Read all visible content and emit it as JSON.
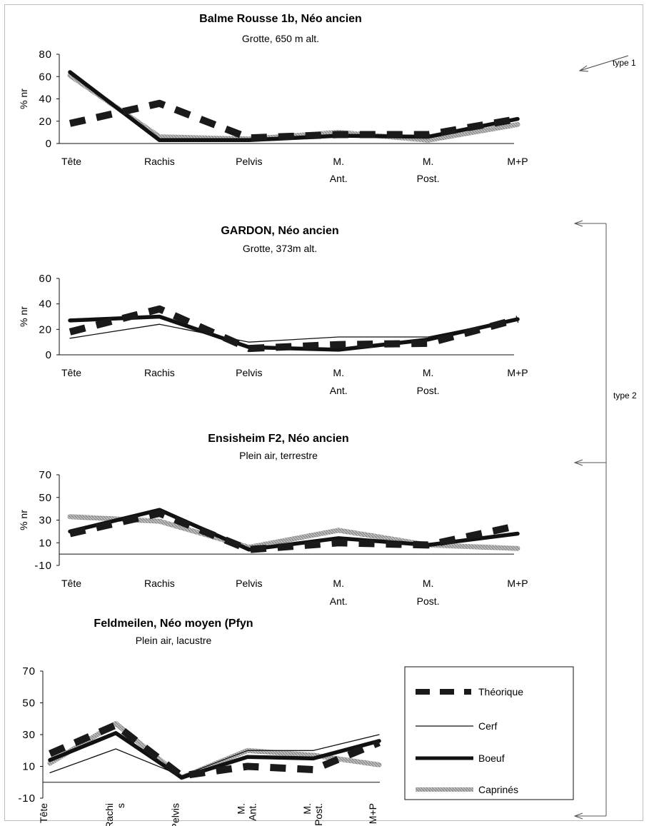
{
  "figure": {
    "annotations": {
      "type1": "type 1",
      "type2": "type 2"
    },
    "legend": [
      {
        "key": "theorique",
        "label": "Théorique"
      },
      {
        "key": "cerf",
        "label": "Cerf"
      },
      {
        "key": "boeuf",
        "label": "Boeuf"
      },
      {
        "key": "caprines",
        "label": "Caprinés"
      }
    ],
    "styles": {
      "theorique": {
        "color": "#1a1a1a",
        "style": "dashed-thick"
      },
      "cerf": {
        "color": "#111111",
        "style": "thin"
      },
      "boeuf": {
        "color": "#111111",
        "style": "thick"
      },
      "caprines": {
        "color": "#9a9a9a",
        "style": "thick-textured"
      }
    }
  },
  "chart_data": [
    {
      "type": "line",
      "title": "Balme Rousse 1b, Néo ancien",
      "subtitle": "Grotte, 650 m alt.",
      "ylabel": "% nr",
      "ylim": [
        0,
        80
      ],
      "yticks": [
        "0",
        "20",
        "40",
        "60",
        "80"
      ],
      "categories": [
        "Tête",
        "Rachis",
        "Pelvis",
        "M.\nAnt.",
        "M.\nPost.",
        "M+P"
      ],
      "series": [
        {
          "name": "Théorique",
          "key": "theorique",
          "values": [
            18,
            36,
            5,
            8,
            8,
            22
          ]
        },
        {
          "name": "Cerf",
          "key": "cerf",
          "values": [
            null,
            null,
            null,
            null,
            null,
            null
          ]
        },
        {
          "name": "Boeuf",
          "key": "boeuf",
          "values": [
            64,
            3,
            3,
            7,
            6,
            22
          ]
        },
        {
          "name": "Caprinés",
          "key": "caprines",
          "values": [
            61,
            6,
            4,
            10,
            3,
            17
          ]
        }
      ]
    },
    {
      "type": "line",
      "title": "GARDON, Néo ancien",
      "subtitle": "Grotte, 373m alt.",
      "ylabel": "% nr",
      "ylim": [
        0,
        60
      ],
      "yticks": [
        "0",
        "20",
        "40",
        "60"
      ],
      "categories": [
        "Tête",
        "Rachis",
        "Pelvis",
        "M.\nAnt.",
        "M.\nPost.",
        "M+P"
      ],
      "series": [
        {
          "name": "Théorique",
          "key": "theorique",
          "values": [
            18,
            36,
            5,
            8,
            9,
            28
          ]
        },
        {
          "name": "Cerf",
          "key": "cerf",
          "values": [
            13,
            24,
            10,
            14,
            14,
            28
          ]
        },
        {
          "name": "Boeuf",
          "key": "boeuf",
          "values": [
            27,
            30,
            6,
            4,
            12,
            28
          ]
        },
        {
          "name": "Caprinés",
          "key": "caprines",
          "values": [
            null,
            null,
            null,
            null,
            null,
            null
          ]
        }
      ]
    },
    {
      "type": "line",
      "title": "Ensisheim F2, Néo ancien",
      "subtitle": "Plein air, terrestre",
      "ylabel": "% nr",
      "ylim": [
        -10,
        70
      ],
      "yticks": [
        "-10",
        "10",
        "30",
        "50",
        "70"
      ],
      "categories": [
        "Tête",
        "Rachis",
        "Pelvis",
        "M.\nAnt.",
        "M.\nPost.",
        "M+P"
      ],
      "series": [
        {
          "name": "Théorique",
          "key": "theorique",
          "values": [
            18,
            36,
            4,
            10,
            8,
            25
          ]
        },
        {
          "name": "Cerf",
          "key": "cerf",
          "values": [
            null,
            null,
            null,
            null,
            null,
            null
          ]
        },
        {
          "name": "Boeuf",
          "key": "boeuf",
          "values": [
            20,
            39,
            4,
            14,
            8,
            18
          ]
        },
        {
          "name": "Caprinés",
          "key": "caprines",
          "values": [
            33,
            29,
            6,
            21,
            8,
            5
          ]
        }
      ]
    },
    {
      "type": "line",
      "title": "Feldmeilen, Néo moyen (Pfyn",
      "subtitle": "Plein air, lacustre",
      "ylim": [
        -10,
        70
      ],
      "yticks": [
        "-10",
        "10",
        "30",
        "50",
        "70"
      ],
      "categories": [
        "Tête",
        "Rachi\ns",
        "Pelvis",
        "M.\nAnt.",
        "M.\nPost.",
        "M+P"
      ],
      "series": [
        {
          "name": "Théorique",
          "key": "theorique",
          "values": [
            18,
            36,
            4,
            10,
            8,
            25
          ]
        },
        {
          "name": "Cerf",
          "key": "cerf",
          "values": [
            6,
            21,
            4,
            20,
            20,
            30
          ]
        },
        {
          "name": "Boeuf",
          "key": "boeuf",
          "values": [
            14,
            31,
            3,
            16,
            15,
            26
          ]
        },
        {
          "name": "Caprinés",
          "key": "caprines",
          "values": [
            12,
            37,
            3,
            20,
            17,
            11
          ]
        }
      ]
    }
  ]
}
